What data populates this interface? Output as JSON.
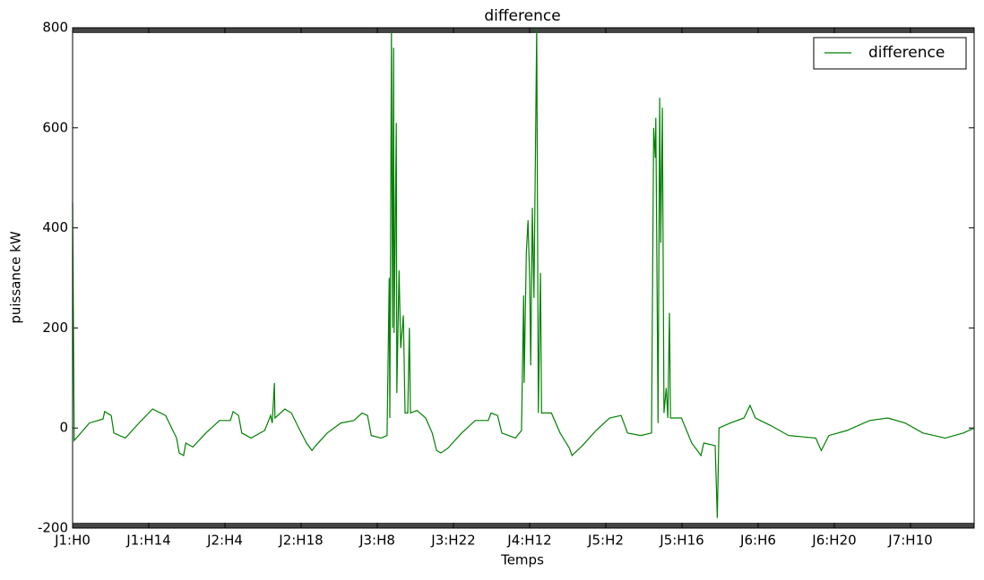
{
  "chart_data": {
    "type": "line",
    "title": "difference",
    "x_label": "Temps",
    "y_label": "puissance kW",
    "x": [
      0,
      0.3,
      3.1,
      5.6,
      5.9,
      7.1,
      7.6,
      9.7,
      12.2,
      14.7,
      17.1,
      19.1,
      19.6,
      20.4,
      20.8,
      22.1,
      24.5,
      27,
      29,
      29.5,
      30.5,
      31.1,
      32.8,
      35.3,
      36.4,
      36.7,
      37.1,
      37.2,
      39,
      40.2,
      41.8,
      43,
      44,
      44.7,
      46.8,
      49.3,
      51.7,
      53.2,
      54.2,
      54.9,
      56.7,
      57.8,
      58.2,
      58.3,
      58.6,
      58.8,
      59,
      59.1,
      59.5,
      59.6,
      60,
      60.3,
      60.8,
      61.1,
      61.6,
      61.9,
      62.1,
      63.3,
      64.9,
      66.1,
      66.9,
      67.7,
      69,
      71.5,
      74,
      76.4,
      76.9,
      78.1,
      78.9,
      81.4,
      82.5,
      82.9,
      83,
      83.4,
      83.7,
      84,
      84.2,
      84.5,
      84.8,
      85.3,
      85.6,
      86,
      86.2,
      88,
      89.6,
      91.3,
      91.8,
      93.7,
      96.2,
      98.7,
      100.8,
      102,
      104.4,
      106.4,
      106.8,
      107.1,
      107.2,
      107.6,
      107.9,
      108.1,
      108.4,
      108.7,
      109.1,
      109.4,
      109.7,
      109.9,
      111.9,
      113.8,
      115.5,
      116,
      118.1,
      118.5,
      118.8,
      120.9,
      123.4,
      124.5,
      125.5,
      128.3,
      131.6,
      136.6,
      137.6,
      139,
      142.3,
      146.5,
      149.8,
      153,
      156.3,
      160.4,
      163.7,
      165.7
    ],
    "series": [
      {
        "name": "difference",
        "color": "#008000",
        "values": [
          450,
          -25,
          10,
          18,
          33,
          25,
          -10,
          -20,
          10,
          38,
          25,
          -20,
          -50,
          -55,
          -30,
          -38,
          -10,
          15,
          15,
          33,
          25,
          -10,
          -20,
          -5,
          25,
          10,
          90,
          20,
          38,
          30,
          -5,
          -30,
          -45,
          -35,
          -10,
          10,
          15,
          30,
          25,
          -15,
          -20,
          -15,
          300,
          20,
          790,
          200,
          760,
          190,
          610,
          70,
          315,
          160,
          225,
          30,
          30,
          200,
          30,
          35,
          20,
          -10,
          -45,
          -50,
          -40,
          -10,
          15,
          15,
          30,
          25,
          -10,
          -20,
          -5,
          265,
          90,
          350,
          415,
          300,
          125,
          440,
          260,
          800,
          30,
          310,
          30,
          30,
          -10,
          -40,
          -55,
          -35,
          -5,
          20,
          25,
          -10,
          -15,
          -10,
          600,
          540,
          620,
          10,
          660,
          370,
          640,
          30,
          80,
          20,
          230,
          20,
          20,
          -30,
          -55,
          -30,
          -35,
          -180,
          0,
          10,
          20,
          45,
          20,
          5,
          -15,
          -20,
          -45,
          -15,
          -5,
          15,
          20,
          10,
          -10,
          -20,
          -10,
          0
        ]
      }
    ],
    "xlim": [
      0,
      165.7
    ],
    "xticks": [
      {
        "value": 0,
        "label": "J1:H0"
      },
      {
        "value": 14,
        "label": "J1:H14"
      },
      {
        "value": 28,
        "label": "J2:H4"
      },
      {
        "value": 42,
        "label": "J2:H18"
      },
      {
        "value": 56,
        "label": "J3:H8"
      },
      {
        "value": 70,
        "label": "J3:H22"
      },
      {
        "value": 84,
        "label": "J4:H12"
      },
      {
        "value": 98,
        "label": "J5:H2"
      },
      {
        "value": 112,
        "label": "J5:H16"
      },
      {
        "value": 126,
        "label": "J6:H6"
      },
      {
        "value": 140,
        "label": "J6:H20"
      },
      {
        "value": 154,
        "label": "J7:H10"
      }
    ],
    "ylim": [
      -200,
      800
    ],
    "yticks": [
      -200,
      0,
      200,
      400,
      600,
      800
    ],
    "legend": "upper right"
  }
}
